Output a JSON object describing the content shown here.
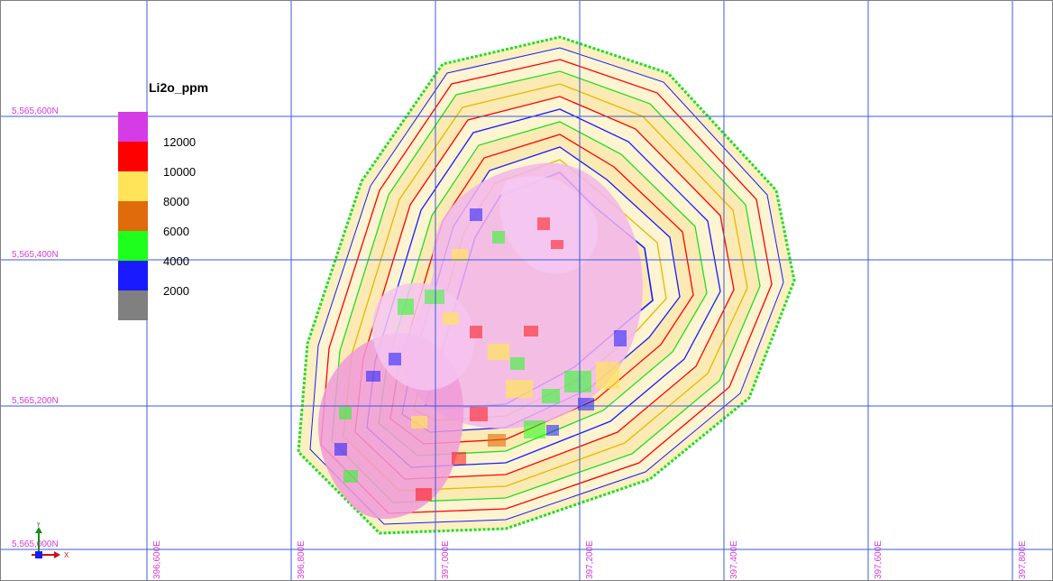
{
  "legend": {
    "title": "Li2o_ppm",
    "swatches": [
      {
        "color": "#d63ce6"
      },
      {
        "color": "#ff0000"
      },
      {
        "color": "#ffe45a"
      },
      {
        "color": "#e06b0a"
      },
      {
        "color": "#1eff1e"
      },
      {
        "color": "#1a1aff"
      },
      {
        "color": "#808080"
      }
    ],
    "labels": [
      "12000",
      "10000",
      "8000",
      "6000",
      "4000",
      "2000"
    ]
  },
  "grid": {
    "northings": [
      "5,565,600N",
      "5,565,400N",
      "5,565,200N",
      "5,565,000N"
    ],
    "eastings": [
      "396,600E",
      "396,800E",
      "397,000E",
      "397,200E",
      "397,400E",
      "397,600E",
      "397,800E"
    ]
  },
  "axis_indicator": {
    "y_label": "Y",
    "x_label": "X"
  },
  "colors": {
    "grid": "#3b5bdb",
    "coord_label": "#d63ad6",
    "pit_outline": "#22dd22",
    "bench_fill": "#fcefc0"
  }
}
